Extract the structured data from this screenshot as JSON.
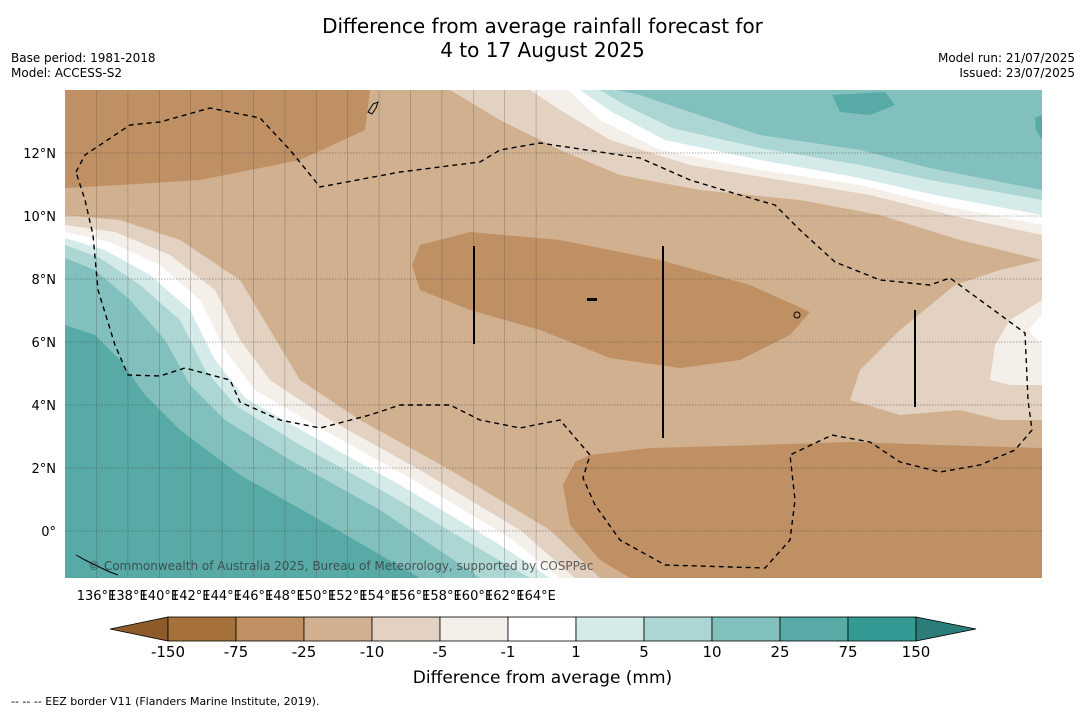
{
  "title_line1": "Difference from average rainfall forecast for",
  "title_line2": "4 to 17 August 2025",
  "base_period": "Base period: 1981-2018",
  "model": "Model: ACCESS-S2",
  "model_run": "Model run: 21/07/2025",
  "issued": "Issued: 23/07/2025",
  "copyright": "© Commonwealth of Australia 2025, Bureau of Meteorology, supported by COSPPac",
  "x_ticks": [
    "136°E",
    "138°E",
    "140°E",
    "142°E",
    "144°E",
    "146°E",
    "148°E",
    "150°E",
    "152°E",
    "154°E",
    "156°E",
    "158°E",
    "160°E",
    "162°E",
    "164°E"
  ],
  "y_ticks": [
    "12°N",
    "10°N",
    "8°N",
    "6°N",
    "4°N",
    "2°N",
    "0°"
  ],
  "colorbar": {
    "title": "Difference from average (mm)",
    "labels": [
      "-150",
      "-75",
      "-25",
      "-10",
      "-5",
      "-1",
      "1",
      "5",
      "10",
      "25",
      "75",
      "150"
    ],
    "colors": [
      "#a6713a",
      "#bf9064",
      "#d1b08f",
      "#e3d2c1",
      "#f4efe9",
      "#ffffff",
      "#d5ebe9",
      "#abd6d3",
      "#81c0bc",
      "#57aaa6",
      "#359a93"
    ],
    "under_color": "#8d5a2a",
    "over_color": "#2a7d78"
  },
  "footer": "--  --  -- EEZ border V11 (Flanders Marine Institute, 2019)."
}
